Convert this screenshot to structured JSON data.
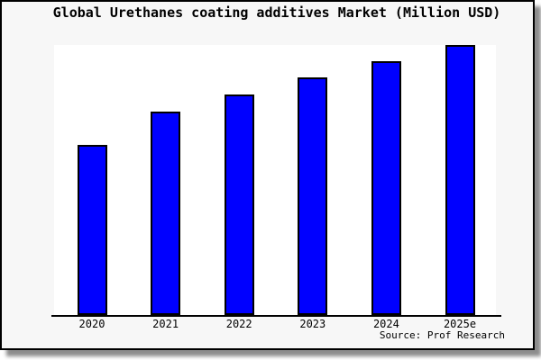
{
  "window": {
    "background_color": "#f7f7f7",
    "plot_background_color": "#ffffff",
    "border_color": "#000000",
    "text_color": "#000000"
  },
  "chart_data": {
    "type": "bar",
    "title": "Global Urethanes coating additives Market (Million USD)",
    "categories": [
      "2020",
      "2021",
      "2022",
      "2023",
      "2024",
      "2025e"
    ],
    "values": [
      63,
      75.3,
      81.7,
      88,
      94,
      100
    ],
    "value_note": "no y-axis or data labels shown; values are relative bar heights as % of tallest bar (2025e)",
    "xlabel": "",
    "ylabel": "",
    "ylim": [
      0,
      100.3
    ],
    "grid": false,
    "legend": null,
    "y_axis_visible": false,
    "bar_color": "#0000ff",
    "bar_edge_color": "#000000",
    "source": "Source: Prof Research"
  }
}
